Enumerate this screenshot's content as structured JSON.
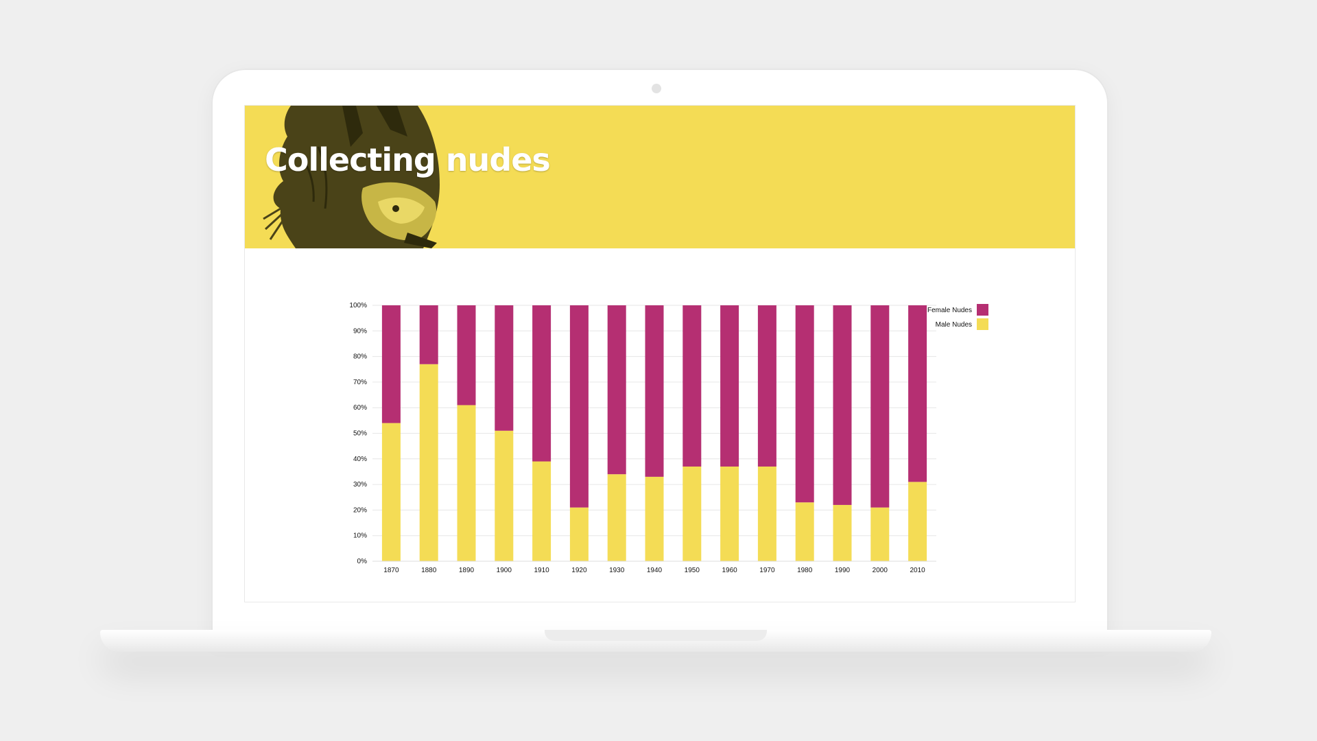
{
  "page": {
    "title": "Collecting nudes"
  },
  "chart_data": {
    "type": "bar",
    "stacked": true,
    "categories": [
      "1870",
      "1880",
      "1890",
      "1900",
      "1910",
      "1920",
      "1930",
      "1940",
      "1950",
      "1960",
      "1970",
      "1980",
      "1990",
      "2000",
      "2010"
    ],
    "series": [
      {
        "name": "Male Nudes",
        "color": "#f4dc55",
        "values": [
          54,
          77,
          61,
          51,
          39,
          21,
          34,
          33,
          37,
          37,
          37,
          23,
          22,
          21,
          31
        ]
      },
      {
        "name": "Female Nudes",
        "color": "#b52f72",
        "values": [
          46,
          23,
          39,
          49,
          61,
          79,
          66,
          67,
          63,
          63,
          63,
          77,
          78,
          79,
          69
        ]
      }
    ],
    "yticks": [
      "0%",
      "10%",
      "20%",
      "30%",
      "40%",
      "50%",
      "60%",
      "70%",
      "80%",
      "90%",
      "100%"
    ],
    "ylim": [
      0,
      100
    ],
    "grid": true,
    "legend": {
      "position": "top-right",
      "items": [
        {
          "label": "Female Nudes",
          "color": "#b52f72"
        },
        {
          "label": "Male Nudes",
          "color": "#f4dc55"
        }
      ]
    }
  }
}
